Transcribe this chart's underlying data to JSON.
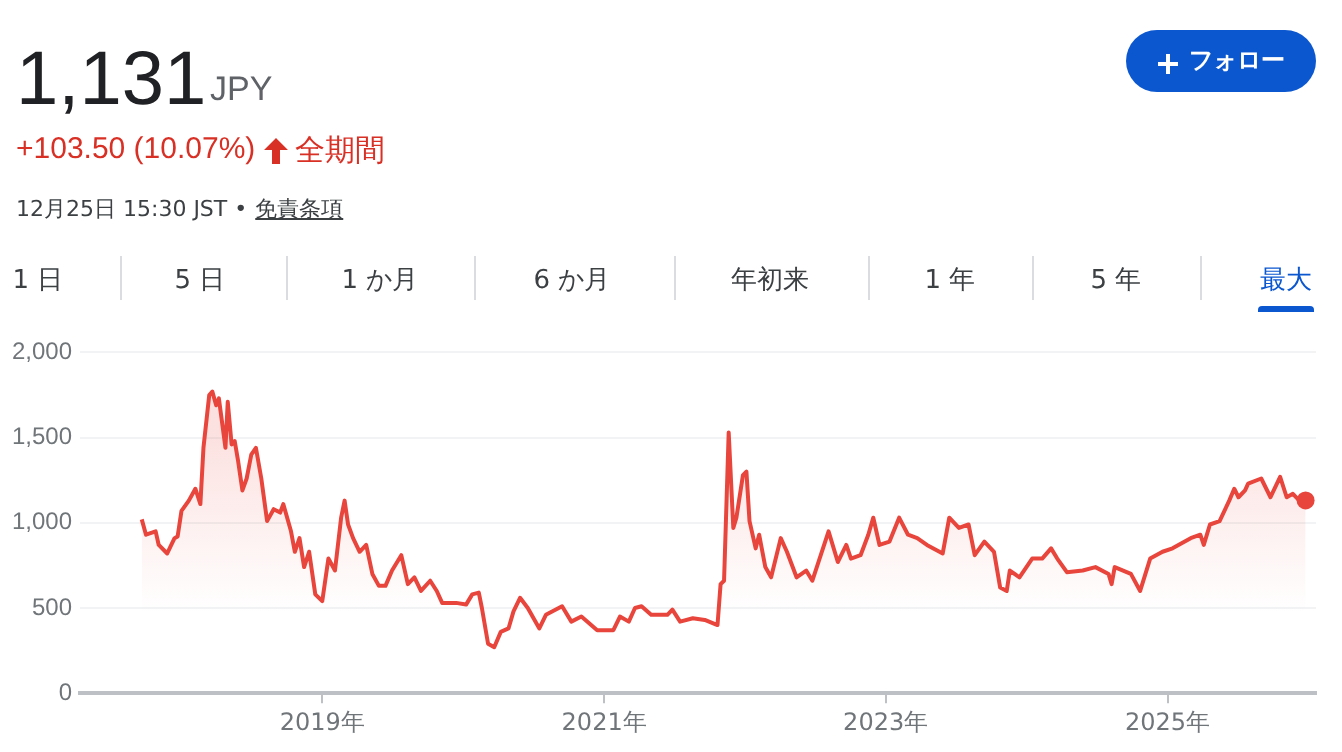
{
  "chart_data": {
    "type": "area",
    "title": "1,131",
    "subtitle": "JPY",
    "annotations": [
      "+103.50 (10.07%)",
      "全期間",
      "12月25日 15:30 JST •",
      "免責条項",
      "フォロー",
      "1 日",
      "5 日",
      "1 か月",
      "6 か月",
      "年初来",
      "1 年",
      "5 年",
      "最大"
    ],
    "x": [
      "2017-09-20",
      "2017-10-01",
      "2017-10-26",
      "2017-11-03",
      "2017-11-25",
      "2017-12-14",
      "2017-12-22",
      "2018-01-01",
      "2018-01-20",
      "2018-02-06",
      "2018-02-19",
      "2018-02-27",
      "2018-03-14",
      "2018-03-22",
      "2018-04-01",
      "2018-04-08",
      "2018-04-18",
      "2018-04-25",
      "2018-05-01",
      "2018-05-11",
      "2018-05-19",
      "2018-05-28",
      "2018-06-08",
      "2018-06-19",
      "2018-07-01",
      "2018-07-13",
      "2018-07-27",
      "2018-08-11",
      "2018-08-28",
      "2018-09-14",
      "2018-09-22",
      "2018-10-12",
      "2018-10-22",
      "2018-11-03",
      "2018-11-15",
      "2018-11-28",
      "2018-12-14",
      "2019-01-01",
      "2019-01-17",
      "2019-02-03",
      "2019-02-19",
      "2019-02-28",
      "2019-03-09",
      "2019-03-22",
      "2019-04-08",
      "2019-04-25",
      "2019-05-11",
      "2019-05-28",
      "2019-06-14",
      "2019-07-01",
      "2019-07-25",
      "2019-08-11",
      "2019-08-28",
      "2019-09-14",
      "2019-10-08",
      "2019-10-25",
      "2019-11-08",
      "2019-12-14",
      "2020-01-09",
      "2020-01-25",
      "2020-02-11",
      "2020-02-19",
      "2020-03-06",
      "2020-03-22",
      "2020-04-08",
      "2020-04-28",
      "2020-05-11",
      "2020-05-28",
      "2020-06-17",
      "2020-07-17",
      "2020-08-03",
      "2020-09-14",
      "2020-10-08",
      "2020-11-03",
      "2020-12-14",
      "2021-01-25",
      "2021-02-11",
      "2021-03-06",
      "2021-03-22",
      "2021-04-08",
      "2021-05-03",
      "2021-06-14",
      "2021-06-27",
      "2021-07-17",
      "2021-08-19",
      "2021-09-19",
      "2021-10-22",
      "2021-10-30",
      "2021-11-08",
      "2021-11-20",
      "2021-12-02",
      "2021-12-10",
      "2021-12-27",
      "2022-01-05",
      "2022-01-13",
      "2022-01-29",
      "2022-02-07",
      "2022-02-23",
      "2022-03-10",
      "2022-04-04",
      "2022-04-20",
      "2022-05-15",
      "2022-06-09",
      "2022-06-25",
      "2022-08-06",
      "2022-08-30",
      "2022-09-21",
      "2022-10-03",
      "2022-10-28",
      "2022-11-17",
      "2022-11-30",
      "2022-12-16",
      "2023-01-11",
      "2023-02-05",
      "2023-02-28",
      "2023-03-24",
      "2023-04-18",
      "2023-05-29",
      "2023-06-15",
      "2023-07-10",
      "2023-08-04",
      "2023-08-20",
      "2023-09-14",
      "2023-10-09",
      "2023-10-25",
      "2023-11-11",
      "2023-11-19",
      "2023-12-14",
      "2024-01-16",
      "2024-02-11",
      "2024-03-05",
      "2024-03-21",
      "2024-04-15",
      "2024-05-26",
      "2024-06-28",
      "2024-08-01",
      "2024-08-09",
      "2024-08-17",
      "2024-09-28",
      "2024-10-22",
      "2024-11-17",
      "2024-12-19",
      "2025-01-14",
      "2025-03-02",
      "2025-03-27",
      "2025-04-05",
      "2025-04-21",
      "2025-05-16",
      "2025-06-10",
      "2025-06-23",
      "2025-07-04",
      "2025-07-21",
      "2025-07-29",
      "2025-09-01",
      "2025-09-25",
      "2025-10-20",
      "2025-11-06",
      "2025-11-22",
      "2025-12-09",
      "2025-12-25"
    ],
    "series": [
      {
        "color": "#e8453c",
        "values": [
          1020,
          930,
          950,
          870,
          820,
          910,
          920,
          1070,
          1130,
          1200,
          1110,
          1440,
          1750,
          1770,
          1690,
          1730,
          1560,
          1440,
          1710,
          1460,
          1480,
          1360,
          1190,
          1260,
          1400,
          1440,
          1260,
          1010,
          1080,
          1060,
          1110,
          950,
          830,
          910,
          740,
          830,
          580,
          540,
          790,
          720,
          1030,
          1130,
          990,
          910,
          830,
          870,
          700,
          630,
          630,
          720,
          810,
          640,
          680,
          600,
          660,
          600,
          530,
          530,
          520,
          580,
          590,
          500,
          290,
          270,
          360,
          380,
          480,
          560,
          500,
          380,
          460,
          510,
          420,
          450,
          370,
          370,
          450,
          420,
          500,
          510,
          460,
          460,
          490,
          420,
          440,
          430,
          400,
          640,
          660,
          1530,
          970,
          1030,
          1280,
          1300,
          1010,
          850,
          930,
          740,
          680,
          910,
          830,
          680,
          720,
          660,
          950,
          770,
          870,
          790,
          810,
          930,
          1030,
          870,
          890,
          1030,
          930,
          910,
          870,
          820,
          1030,
          970,
          990,
          810,
          890,
          830,
          620,
          600,
          720,
          680,
          790,
          790,
          850,
          790,
          710,
          720,
          740,
          700,
          640,
          740,
          700,
          600,
          790,
          830,
          850,
          910,
          930,
          870,
          990,
          1010,
          1130,
          1200,
          1150,
          1190,
          1230,
          1260,
          1150,
          1270,
          1150,
          1170,
          1130,
          1131
        ]
      }
    ],
    "xlim": [
      "2017-04-13",
      "2026-01-21"
    ],
    "xticks": [
      {
        "value": "2019-01-01",
        "label": "2019年"
      },
      {
        "value": "2021-01-01",
        "label": "2021年"
      },
      {
        "value": "2023-01-01",
        "label": "2023年"
      },
      {
        "value": "2025-01-01",
        "label": "2025年"
      }
    ],
    "ylim": [
      0,
      2000
    ],
    "yticks": [
      0,
      {
        "value": 500,
        "label": "500"
      },
      {
        "value": 1000,
        "label": "1,000"
      },
      {
        "value": 1500,
        "label": "1,500"
      },
      {
        "value": 2000,
        "label": "2,000"
      }
    ],
    "grid": "y",
    "legend": false
  }
}
